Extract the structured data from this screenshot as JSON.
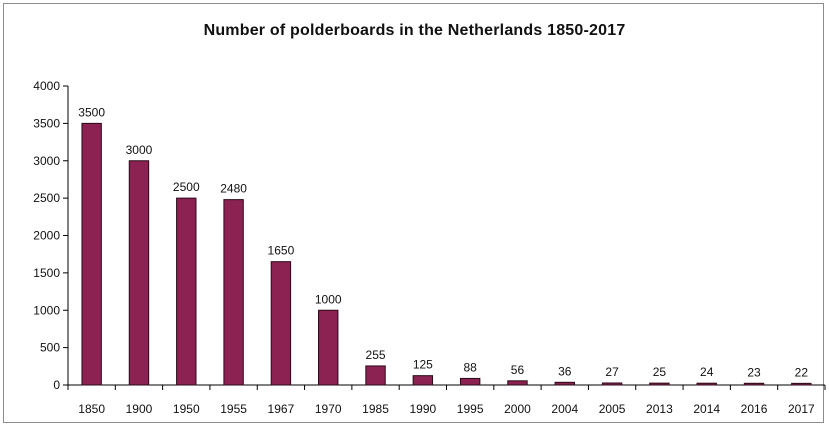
{
  "chart_data": {
    "type": "bar",
    "title": "Number of polderboards in the Netherlands 1850-2017",
    "xlabel": "",
    "ylabel": "",
    "categories": [
      "1850",
      "1900",
      "1950",
      "1955",
      "1967",
      "1970",
      "1985",
      "1990",
      "1995",
      "2000",
      "2004",
      "2005",
      "2013",
      "2014",
      "2016",
      "2017"
    ],
    "values": [
      3500,
      3000,
      2500,
      2480,
      1650,
      1000,
      255,
      125,
      88,
      56,
      36,
      27,
      25,
      24,
      23,
      22
    ],
    "ylim": [
      0,
      4000
    ],
    "yticks": [
      0,
      500,
      1000,
      1500,
      2000,
      2500,
      3000,
      3500,
      4000
    ],
    "grid": false,
    "legend": "none",
    "colors": {
      "bar": "#8b2252",
      "bar_edge": "#2a0a18",
      "axis": "#000000"
    }
  }
}
